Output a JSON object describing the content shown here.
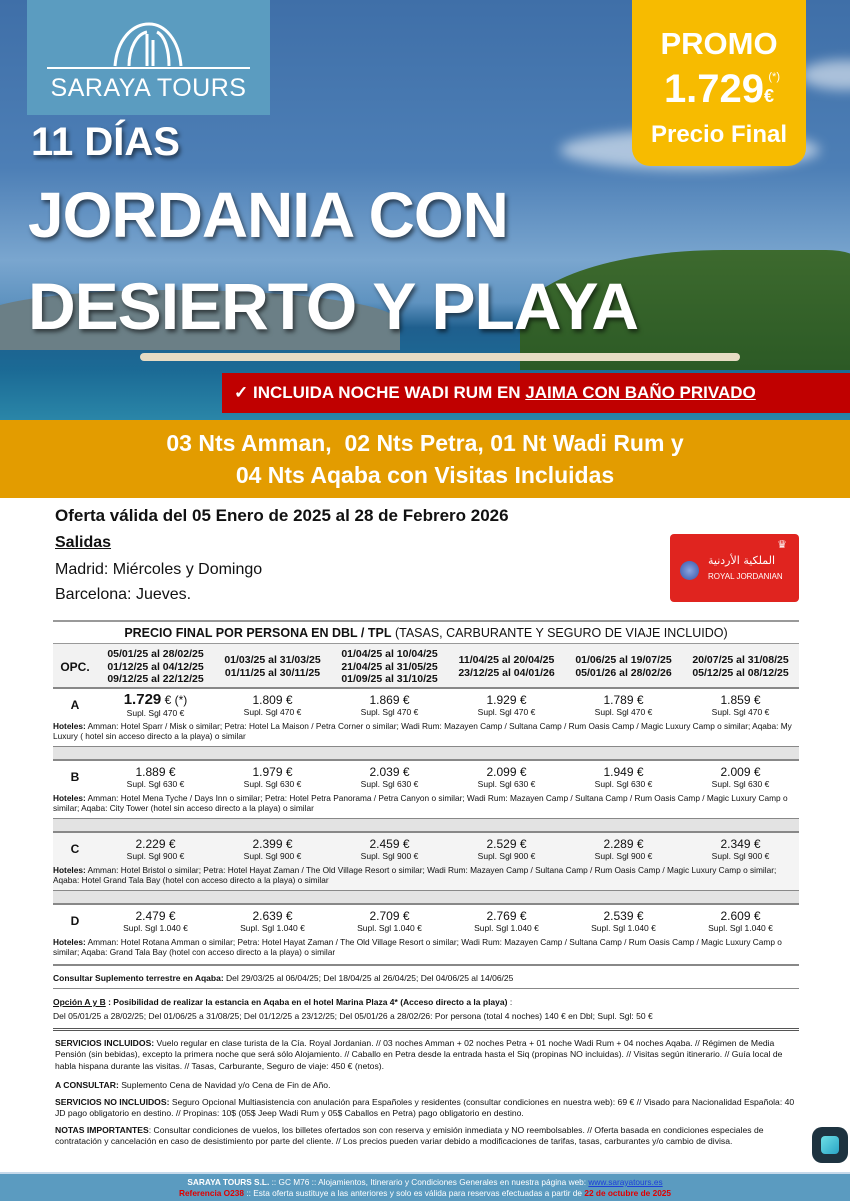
{
  "brand": {
    "name": "SARAYA TOURS",
    "logo_icon": "pharaoh-head-logo"
  },
  "promo": {
    "label": "PROMO",
    "price": "1.729",
    "asterisk": "(*)",
    "currency": "€",
    "subtitle": "Precio Final"
  },
  "hero": {
    "days": "11 DÍAS",
    "title_line1": "JORDANIA CON",
    "title_line2": "DESIERTO Y PLAYA"
  },
  "banner": {
    "check": "✓",
    "text": "INCLUIDA NOCHE WADI RUM EN ",
    "underlined": "JAIMA CON BAÑO PRIVADO"
  },
  "nights": {
    "line1": "03 Nts Amman,  02 Nts Petra, 01 Nt Wadi Rum y",
    "line2": "04 Nts Aqaba con Visitas Incluidas"
  },
  "offer": {
    "validity": "Oferta válida del 05 Enero de 2025 al 28 de Febrero 2026",
    "departures_title": "Salidas",
    "madrid": "Madrid: Miércoles y Domingo",
    "barcelona": "Barcelona: Jueves."
  },
  "airline": {
    "name": "ROYAL JORDANIAN",
    "arabic": "الملكية الأردنية"
  },
  "table": {
    "title_bold": "PRECIO FINAL POR PERSONA EN DBL / TPL",
    "title_rest": " (TASAS, CARBURANTE Y SEGURO DE VIAJE INCLUIDO)",
    "opc_header": "OPC.",
    "columns": [
      [
        "05/01/25 al 28/02/25",
        "01/12/25 al 04/12/25",
        "09/12/25 al 22/12/25"
      ],
      [
        "01/03/25 al 31/03/25",
        "01/11/25 al 30/11/25"
      ],
      [
        "01/04/25 al 10/04/25",
        "21/04/25 al 31/05/25",
        "01/09/25 al 31/10/25"
      ],
      [
        "11/04/25 al 20/04/25",
        "23/12/25 al 04/01/26"
      ],
      [
        "01/06/25 al 19/07/25",
        "05/01/26 al 28/02/26"
      ],
      [
        "20/07/25 al 31/08/25",
        "05/12/25 al 08/12/25"
      ]
    ],
    "rows": [
      {
        "opc": "A",
        "prices": [
          "1.729",
          "1.809 €",
          "1.869 €",
          "1.929 €",
          "1.789 €",
          "1.859 €"
        ],
        "first_suffix": " € (*)",
        "supl": "Supl. Sgl 470 €",
        "hotels_label": "Hoteles:",
        "hotels": " Amman: Hotel Sparr / Misk o similar; Petra: Hotel La Maison / Petra Corner o similar;  Wadi Rum: Mazayen Camp / Sultana Camp / Rum Oasis Camp / Magic Luxury Camp o similar; Aqaba: My Luxury ( hotel sin acceso directo a la playa) o similar"
      },
      {
        "opc": "B",
        "prices": [
          "1.889 €",
          "1.979 €",
          "2.039 €",
          "2.099 €",
          "1.949 €",
          "2.009 €"
        ],
        "supl": "Supl. Sgl 630 €",
        "hotels_label": "Hoteles:",
        "hotels": " Amman: Hotel Mena Tyche / Days Inn o similar;  Petra: Hotel Petra Panorama / Petra Canyon o similar; Wadi Rum: Mazayen Camp / Sultana Camp / Rum Oasis Camp / Magic Luxury Camp o similar;  Aqaba: City Tower (hotel sin acceso directo a la playa) o similar"
      },
      {
        "opc": "C",
        "prices": [
          "2.229 €",
          "2.399 €",
          "2.459 €",
          "2.529 €",
          "2.289 €",
          "2.349 €"
        ],
        "supl": "Supl. Sgl 900 €",
        "hotels_label": "Hoteles:",
        "hotels": "  Amman: Hotel Bristol o similar; Petra: Hotel Hayat Zaman / The Old Village Resort o similar; Wadi Rum: Mazayen Camp / Sultana Camp / Rum Oasis Camp / Magic Luxury Camp o similar; Aqaba: Hotel Grand Tala Bay (hotel con acceso directo a la playa) o similar"
      },
      {
        "opc": "D",
        "prices": [
          "2.479 €",
          "2.639 €",
          "2.709 €",
          "2.769 €",
          "2.539 €",
          "2.609 €"
        ],
        "supl": "Supl. Sgl 1.040 €",
        "hotels_label": "Hoteles:",
        "hotels": " Amman: Hotel Rotana Amman o similar; Petra: Hotel Hayat Zaman / The Old Village Resort o similar;  Wadi Rum: Mazayen Camp / Sultana Camp / Rum Oasis Camp / Magic Luxury Camp o similar; Aqaba: Grand Tala Bay (hotel con acceso directo a la playa) o similar"
      }
    ]
  },
  "notes": {
    "aqaba_label": "Consultar Suplemento terrestre en Aqaba:",
    "aqaba_text": " Del 29/03/25 al 06/04/25; Del 18/04/25 al 26/04/25; Del 04/06/25 al 14/06/25",
    "option_label": "Opción A y B",
    "option_text": " : Posibilidad de realizar la estancia en Aqaba en el hotel Marina Plaza 4* (Acceso directo a la playa)",
    "option_colon": " :",
    "option_detail": "Del 05/01/25 a 28/02/25; Del 01/06/25 a 31/08/25; Del 01/12/25 a 23/12/25; Del 05/01/26 a 28/02/26: Por persona (total 4 noches) 140 € en Dbl; Supl. Sgl: 50 €",
    "incl_label": "SERVICIOS INCLUIDOS:",
    "incl_text": " Vuelo regular en clase turista de la Cía. Royal Jordanian. // 03 noches Amman + 02 noches Petra + 01 noche Wadi Rum + 04 noches Aqaba. // Régimen de Media Pensión (sin bebidas), excepto la primera noche que será sólo Alojamiento. // Caballo en Petra desde la entrada hasta el Siq (propinas NO incluidas). // Visitas según itinerario. // Guía local de habla hispana durante las visitas. // Tasas, Carburante, Seguro de viaje: 450 € (netos).",
    "consult_label": "A CONSULTAR:",
    "consult_text": " Suplemento Cena de Navidad y/o Cena de Fin de Año.",
    "noincl_label": "SERVICIOS NO INCLUIDOS:",
    "noincl_text": " Seguro Opcional Multiasistencia con anulación para Españoles y residentes (consultar condiciones en nuestra web): 69 € // Visado para Nacionalidad Española: 40 JD pago obligatorio en destino. // Propinas: 10$ (05$ Jeep Wadi Rum y 05$ Caballos en Petra) pago obligatorio en destino.",
    "imp_label": "NOTAS IMPORTANTES",
    "imp_text": ": Consultar condiciones de vuelos, los billetes ofertados son con reserva y emisión inmediata y NO reembolsables. // Oferta basada en condiciones especiales de contratación y cancelación en caso de desistimiento por parte del cliente. // Los precios pueden variar debido a modificaciones de tarifas, tasas, carburantes y/o cambio de divisa."
  },
  "footer": {
    "company": "SARAYA TOURS S.L.",
    "line1": " :: GC M76 ::  Alojamientos, Itinerario y Condiciones Generales en nuestra página web:  ",
    "url": "www.sarayatours.es",
    "ref": "Referencia O238",
    "line2": " :: Esta oferta sustituye a las anteriores y solo es válida para reservas efectuadas a partir de ",
    "date": "22 de octubre de 2025"
  },
  "colors": {
    "red": "#c00000",
    "orange": "#e39c00",
    "promo": "#f7bb00",
    "footer": "#5b9bc0"
  }
}
